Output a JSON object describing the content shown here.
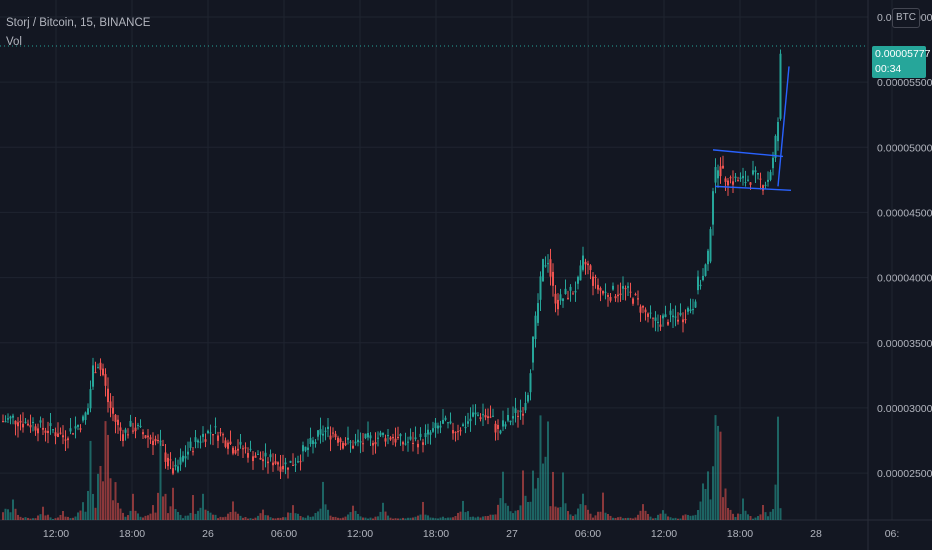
{
  "header": {
    "symbol_line": "Storj / Bitcoin, 15, BINANCE",
    "indicator": "Vol",
    "currency_badge": "BTC"
  },
  "last_price": {
    "value": "0.00005777",
    "countdown": "00:34"
  },
  "colors": {
    "background": "#131722",
    "up": "#26a69a",
    "down": "#ef5350",
    "grid": "#1f2430",
    "axis_text": "#b2b5be",
    "trendline": "#2962ff"
  },
  "chart_data": {
    "type": "candlestick",
    "title": "Storj / Bitcoin, 15, BINANCE",
    "y_axis": {
      "ticks": [
        "0.00006000",
        "0.00005500",
        "0.00005000",
        "0.00004500",
        "0.00004000",
        "0.00003500",
        "0.00003000",
        "0.00002500"
      ],
      "ylim": [
        2.14e-05,
        6.13e-05
      ]
    },
    "x_axis": {
      "ticks": [
        "12:00",
        "18:00",
        "26",
        "06:00",
        "12:00",
        "18:00",
        "27",
        "06:00",
        "12:00",
        "18:00",
        "28",
        "06:"
      ]
    },
    "price_path": [
      [
        0,
        2.9e-05
      ],
      [
        10,
        2.92e-05
      ],
      [
        20,
        2.89e-05
      ],
      [
        30,
        2.88e-05
      ],
      [
        40,
        2.84e-05
      ],
      [
        50,
        2.83e-05
      ],
      [
        60,
        2.78e-05
      ],
      [
        70,
        2.84e-05
      ],
      [
        80,
        2.9e-05
      ],
      [
        85,
        3e-05
      ],
      [
        90,
        3.3e-05
      ],
      [
        95,
        3.35e-05
      ],
      [
        100,
        3.25e-05
      ],
      [
        105,
        3.05e-05
      ],
      [
        110,
        2.95e-05
      ],
      [
        115,
        2.85e-05
      ],
      [
        120,
        2.8e-05
      ],
      [
        130,
        2.86e-05
      ],
      [
        140,
        2.8e-05
      ],
      [
        150,
        2.76e-05
      ],
      [
        160,
        2.68e-05
      ],
      [
        165,
        2.58e-05
      ],
      [
        172,
        2.5e-05
      ],
      [
        180,
        2.62e-05
      ],
      [
        190,
        2.72e-05
      ],
      [
        200,
        2.79e-05
      ],
      [
        210,
        2.83e-05
      ],
      [
        220,
        2.78e-05
      ],
      [
        230,
        2.7e-05
      ],
      [
        240,
        2.69e-05
      ],
      [
        250,
        2.64e-05
      ],
      [
        260,
        2.6e-05
      ],
      [
        270,
        2.6e-05
      ],
      [
        280,
        2.56e-05
      ],
      [
        290,
        2.58e-05
      ],
      [
        300,
        2.66e-05
      ],
      [
        310,
        2.73e-05
      ],
      [
        320,
        2.82e-05
      ],
      [
        330,
        2.81e-05
      ],
      [
        340,
        2.74e-05
      ],
      [
        350,
        2.72e-05
      ],
      [
        360,
        2.74e-05
      ],
      [
        370,
        2.76e-05
      ],
      [
        380,
        2.79e-05
      ],
      [
        390,
        2.78e-05
      ],
      [
        400,
        2.73e-05
      ],
      [
        410,
        2.75e-05
      ],
      [
        420,
        2.76e-05
      ],
      [
        430,
        2.82e-05
      ],
      [
        440,
        2.88e-05
      ],
      [
        450,
        2.83e-05
      ],
      [
        460,
        2.86e-05
      ],
      [
        470,
        2.94e-05
      ],
      [
        480,
        2.95e-05
      ],
      [
        490,
        2.9e-05
      ],
      [
        495,
        2.81e-05
      ],
      [
        500,
        2.86e-05
      ],
      [
        510,
        2.94e-05
      ],
      [
        520,
        3e-05
      ],
      [
        525,
        3.15e-05
      ],
      [
        530,
        3.5e-05
      ],
      [
        535,
        3.8e-05
      ],
      [
        540,
        4.1e-05
      ],
      [
        545,
        4.15e-05
      ],
      [
        550,
        3.9e-05
      ],
      [
        555,
        3.8e-05
      ],
      [
        560,
        3.85e-05
      ],
      [
        565,
        3.88e-05
      ],
      [
        570,
        3.9e-05
      ],
      [
        575,
        3.95e-05
      ],
      [
        580,
        4.12e-05
      ],
      [
        585,
        4.08e-05
      ],
      [
        590,
        3.98e-05
      ],
      [
        595,
        3.92e-05
      ],
      [
        600,
        3.88e-05
      ],
      [
        610,
        3.88e-05
      ],
      [
        620,
        3.91e-05
      ],
      [
        630,
        3.85e-05
      ],
      [
        640,
        3.75e-05
      ],
      [
        650,
        3.65e-05
      ],
      [
        660,
        3.68e-05
      ],
      [
        670,
        3.69e-05
      ],
      [
        680,
        3.71e-05
      ],
      [
        690,
        3.8e-05
      ],
      [
        695,
        3.95e-05
      ],
      [
        700,
        4e-05
      ],
      [
        705,
        4.15e-05
      ],
      [
        710,
        4.7e-05
      ],
      [
        715,
        4.88e-05
      ],
      [
        720,
        4.78e-05
      ],
      [
        730,
        4.75e-05
      ],
      [
        740,
        4.74e-05
      ],
      [
        750,
        4.78e-05
      ],
      [
        760,
        4.72e-05
      ],
      [
        765,
        4.76e-05
      ],
      [
        770,
        4.9e-05
      ],
      [
        775,
        5.2e-05
      ],
      [
        778,
        5.777e-05
      ]
    ],
    "volume_bars": [
      [
        10,
        0.18
      ],
      [
        40,
        0.12
      ],
      [
        60,
        0.08
      ],
      [
        80,
        0.22
      ],
      [
        88,
        0.55
      ],
      [
        96,
        0.38
      ],
      [
        104,
        0.78
      ],
      [
        112,
        0.32
      ],
      [
        130,
        0.2
      ],
      [
        150,
        0.18
      ],
      [
        158,
        0.55
      ],
      [
        170,
        0.25
      ],
      [
        190,
        0.17
      ],
      [
        200,
        0.3
      ],
      [
        230,
        0.18
      ],
      [
        260,
        0.12
      ],
      [
        290,
        0.18
      ],
      [
        320,
        0.28
      ],
      [
        350,
        0.16
      ],
      [
        380,
        0.14
      ],
      [
        420,
        0.14
      ],
      [
        460,
        0.2
      ],
      [
        500,
        0.36
      ],
      [
        520,
        0.4
      ],
      [
        530,
        0.52
      ],
      [
        538,
        0.87
      ],
      [
        544,
        0.77
      ],
      [
        550,
        0.33
      ],
      [
        560,
        0.35
      ],
      [
        580,
        0.27
      ],
      [
        600,
        0.2
      ],
      [
        640,
        0.15
      ],
      [
        660,
        0.12
      ],
      [
        700,
        0.35
      ],
      [
        705,
        0.52
      ],
      [
        712,
        0.82
      ],
      [
        716,
        1.0
      ],
      [
        722,
        0.37
      ],
      [
        740,
        0.17
      ],
      [
        760,
        0.13
      ],
      [
        774,
        0.32
      ],
      [
        776,
        0.7
      ]
    ],
    "annotations": [
      {
        "type": "flag-channel",
        "upper": [
          [
            710,
            4.98e-05
          ],
          [
            780,
            4.93e-05
          ]
        ],
        "lower": [
          [
            712,
            4.7e-05
          ],
          [
            788,
            4.67e-05
          ]
        ]
      },
      {
        "type": "breakout-line",
        "points": [
          [
            775,
            4.7e-05
          ],
          [
            786,
            5.62e-05
          ]
        ]
      }
    ]
  }
}
